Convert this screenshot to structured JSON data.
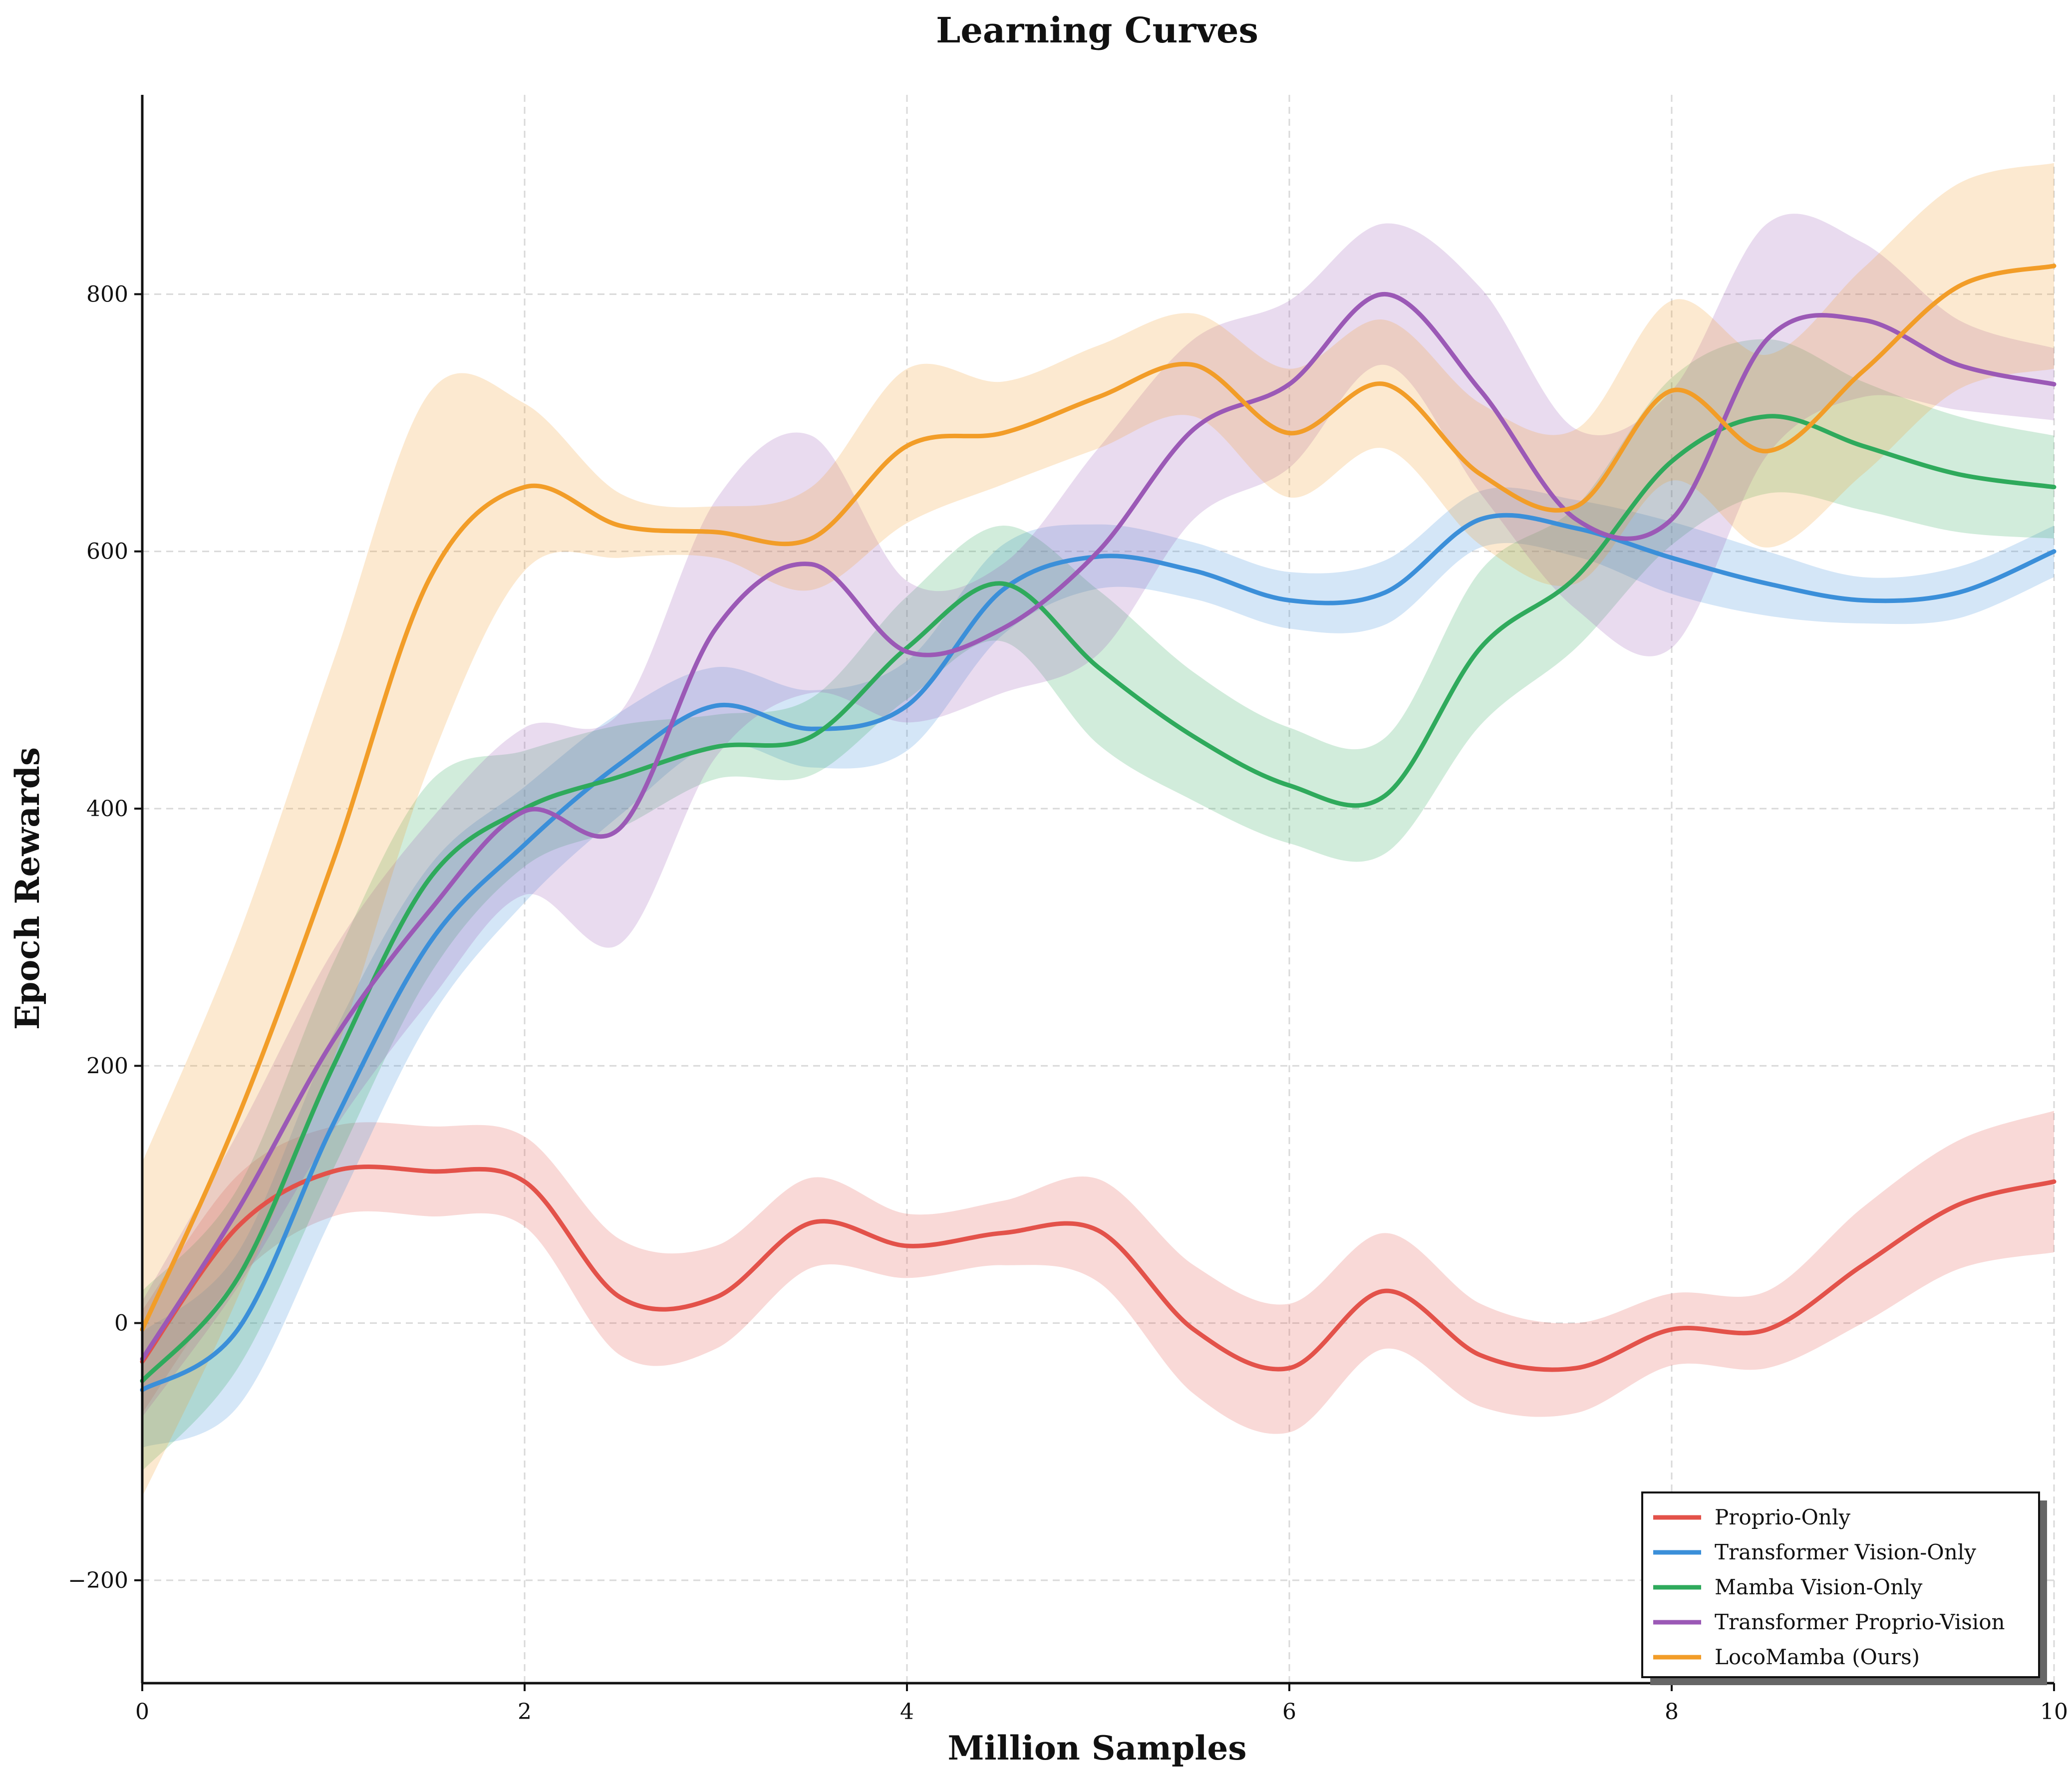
{
  "chart_data": {
    "type": "line",
    "title": "Learning Curves",
    "xlabel": "Million Samples",
    "ylabel": "Epoch Rewards",
    "xlim": [
      0,
      10
    ],
    "ylim": [
      -280,
      955
    ],
    "xticks": [
      0,
      2,
      4,
      6,
      8,
      10
    ],
    "yticks": [
      -200,
      0,
      200,
      400,
      600,
      800
    ],
    "ytick_labels": [
      "−200",
      "0",
      "200",
      "400",
      "600",
      "800"
    ],
    "grid": true,
    "legend_position": "bottom-right",
    "x": [
      0,
      0.5,
      1,
      1.5,
      2,
      2.5,
      3,
      3.5,
      4,
      4.5,
      5,
      5.5,
      6,
      6.5,
      7,
      7.5,
      8,
      8.5,
      9,
      9.5,
      10
    ],
    "series": [
      {
        "name": "Proprio-Only",
        "color": "#e3524a",
        "values": [
          -30,
          75,
          118,
          118,
          110,
          20,
          20,
          78,
          60,
          70,
          72,
          -5,
          -35,
          25,
          -25,
          -35,
          -5,
          -5,
          45,
          92,
          110
        ],
        "spread": [
          40,
          40,
          35,
          35,
          35,
          45,
          40,
          35,
          25,
          25,
          40,
          50,
          50,
          45,
          40,
          35,
          28,
          30,
          45,
          50,
          55
        ]
      },
      {
        "name": "Transformer Vision-Only",
        "color": "#3b8fd9",
        "values": [
          -52,
          -5,
          155,
          295,
          372,
          435,
          480,
          462,
          480,
          570,
          596,
          585,
          562,
          568,
          625,
          618,
          595,
          575,
          562,
          568,
          600
        ],
        "spread": [
          45,
          60,
          70,
          60,
          45,
          40,
          30,
          30,
          35,
          35,
          25,
          22,
          22,
          25,
          22,
          22,
          28,
          25,
          18,
          20,
          20
        ]
      },
      {
        "name": "Mamba Vision-Only",
        "color": "#2faa5c",
        "values": [
          -45,
          35,
          200,
          345,
          400,
          425,
          448,
          456,
          525,
          575,
          510,
          456,
          418,
          410,
          525,
          580,
          670,
          705,
          682,
          660,
          650
        ],
        "spread": [
          70,
          70,
          80,
          75,
          45,
          40,
          25,
          30,
          40,
          45,
          60,
          50,
          45,
          45,
          60,
          55,
          65,
          60,
          50,
          45,
          40
        ]
      },
      {
        "name": "Transformer Proprio-Vision",
        "color": "#9b59b6",
        "values": [
          -28,
          88,
          220,
          320,
          398,
          385,
          540,
          590,
          522,
          540,
          600,
          695,
          730,
          800,
          725,
          625,
          625,
          765,
          780,
          745,
          730
        ],
        "spread": [
          45,
          60,
          70,
          70,
          65,
          90,
          100,
          100,
          55,
          50,
          80,
          70,
          65,
          55,
          80,
          70,
          100,
          90,
          60,
          35,
          28
        ]
      },
      {
        "name": "LocoMamba (Ours)",
        "color": "#f29d28",
        "values": [
          -5,
          160,
          360,
          578,
          650,
          620,
          615,
          610,
          682,
          692,
          720,
          745,
          692,
          730,
          660,
          635,
          725,
          678,
          740,
          806,
          822
        ],
        "spread": [
          130,
          140,
          155,
          145,
          65,
          25,
          20,
          40,
          60,
          40,
          40,
          40,
          50,
          50,
          55,
          60,
          70,
          75,
          80,
          80,
          80
        ]
      }
    ]
  }
}
